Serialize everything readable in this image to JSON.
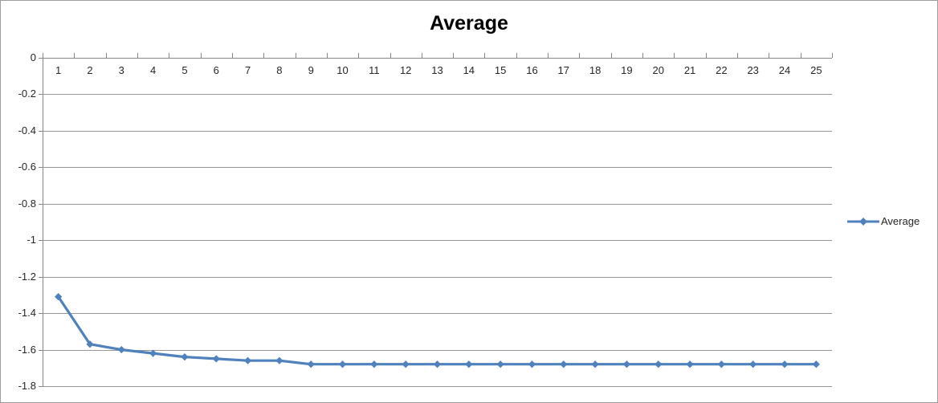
{
  "chart_data": {
    "type": "line",
    "title": "Average",
    "categories": [
      "1",
      "2",
      "3",
      "4",
      "5",
      "6",
      "7",
      "8",
      "9",
      "10",
      "11",
      "12",
      "13",
      "14",
      "15",
      "16",
      "17",
      "18",
      "19",
      "20",
      "21",
      "22",
      "23",
      "24",
      "25"
    ],
    "series": [
      {
        "name": "Average",
        "marker": "diamond",
        "values": [
          -1.31,
          -1.57,
          -1.6,
          -1.62,
          -1.64,
          -1.65,
          -1.66,
          -1.66,
          -1.68,
          -1.68,
          -1.68,
          -1.68,
          -1.68,
          -1.68,
          -1.68,
          -1.68,
          -1.68,
          -1.68,
          -1.68,
          -1.68,
          -1.68,
          -1.68,
          -1.68,
          -1.68,
          -1.68
        ]
      }
    ],
    "y_ticks": [
      "0",
      "-0.2",
      "-0.4",
      "-0.6",
      "-0.8",
      "-1",
      "-1.2",
      "-1.4",
      "-1.6",
      "-1.8"
    ],
    "ylim": [
      0,
      -1.8
    ],
    "grid": "horizontal",
    "legend_position": "right",
    "x_axis_position": "zero-line-top",
    "colors": {
      "series": "#4F81BD",
      "gridline": "#969696",
      "axis": "#878787",
      "labels": "#262626",
      "title": "#000000",
      "border": "#9D9D9D",
      "background": "#FFFFFF"
    }
  }
}
